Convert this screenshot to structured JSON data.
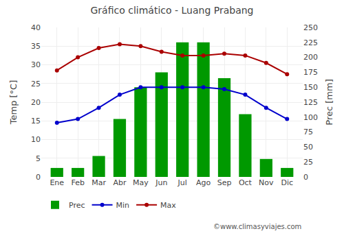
{
  "chart_data": {
    "type": "bar",
    "title": "Gráfico climático - Luang Prabang",
    "categories": [
      "Ene",
      "Feb",
      "Mar",
      "Abr",
      "May",
      "Jun",
      "Jul",
      "Ago",
      "Sep",
      "Oct",
      "Nov",
      "Dic"
    ],
    "series": [
      {
        "name": "Prec",
        "type": "bar",
        "axis": "y2",
        "color": "#009900",
        "values": [
          15,
          15,
          35,
          97,
          150,
          175,
          225,
          225,
          165,
          105,
          30,
          15
        ]
      },
      {
        "name": "Min",
        "type": "line",
        "marker": "circle",
        "color": "#0000cc",
        "values": [
          14.5,
          15.5,
          18.5,
          22,
          24,
          24,
          24,
          24,
          23.5,
          22,
          18.5,
          15.5
        ]
      },
      {
        "name": "Max",
        "type": "line",
        "marker": "circle",
        "color": "#aa0000",
        "values": [
          28.5,
          32,
          34.5,
          35.5,
          35,
          33.5,
          32.5,
          32.5,
          33,
          32.5,
          30.5,
          27.5
        ]
      }
    ],
    "ylabel": "Temp [°C]",
    "y2label": "Prec [mm]",
    "ylim": [
      0,
      40
    ],
    "yticks": [
      0,
      5,
      10,
      15,
      20,
      25,
      30,
      35,
      40
    ],
    "y2lim": [
      0,
      250
    ],
    "y2ticks": [
      0,
      25,
      50,
      75,
      100,
      125,
      150,
      175,
      200,
      225,
      250
    ],
    "grid": true,
    "legend": "bottom",
    "annotations": [
      "©www.climasyviajes.com"
    ]
  }
}
